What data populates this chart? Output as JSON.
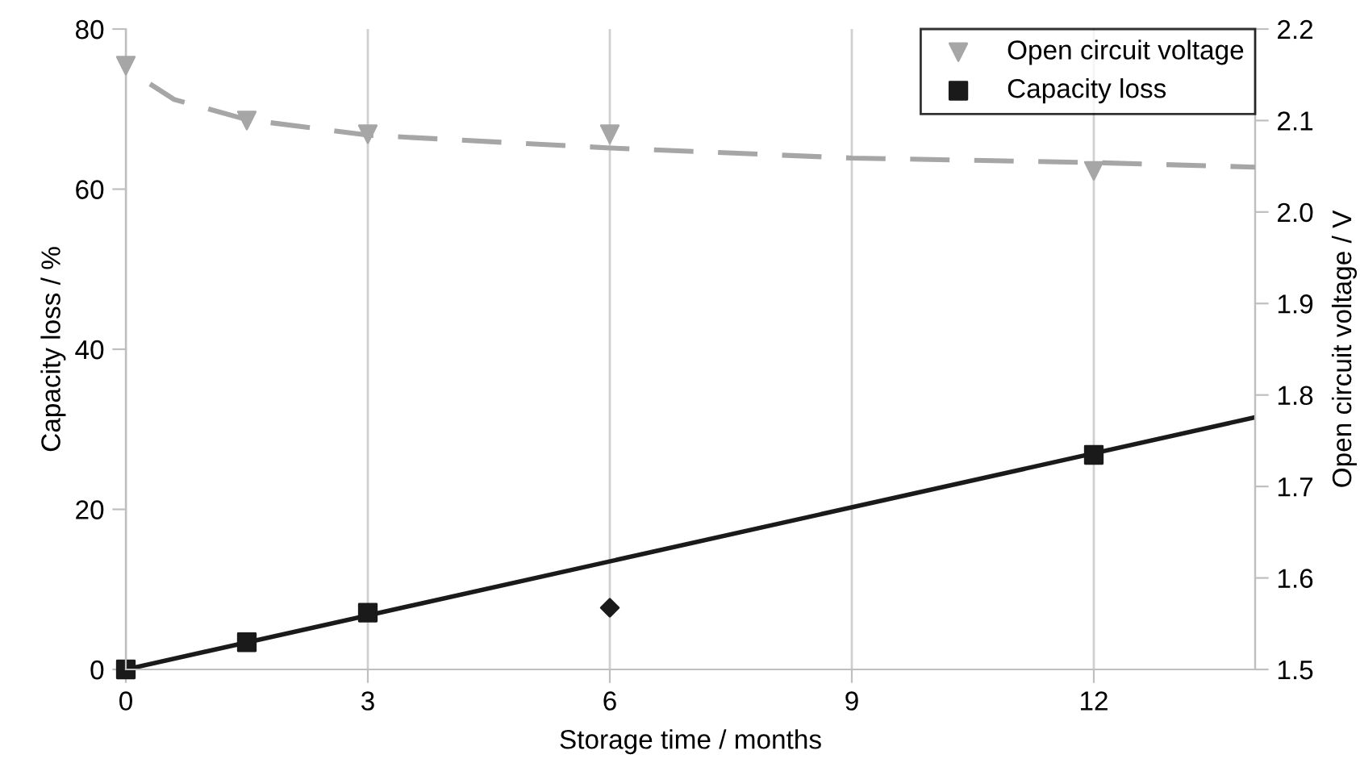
{
  "chart_data": {
    "type": "scatter",
    "xlabel": "Storage time / months",
    "ylabel": "Capacity loss / %",
    "y2label": "Open circuit voltage / V",
    "xlim": [
      0,
      14
    ],
    "xticks": [
      0,
      3,
      6,
      9,
      12
    ],
    "ylim": [
      0,
      80
    ],
    "yticks": [
      0,
      20,
      40,
      60,
      80
    ],
    "y2lim": [
      1.5,
      2.2
    ],
    "y2ticks": [
      1.5,
      1.6,
      1.7,
      1.8,
      1.9,
      {
        "value": 2.0,
        "label": "2.0"
      },
      2.1,
      2.2
    ],
    "grid": "x",
    "legend": "top right",
    "series": [
      {
        "name": "Open circuit voltage",
        "axis": "y2",
        "marker": "triangle",
        "color": "#a6a6a6",
        "x": [
          0,
          1.5,
          3,
          6,
          12
        ],
        "values": [
          2.16,
          2.1,
          2.085,
          2.085,
          2.045
        ]
      },
      {
        "type": "line",
        "axis": "y2",
        "line_style": "dashed",
        "marker": "none",
        "color": "#a6a6a6",
        "x": [
          0.3,
          0.6,
          1.5,
          3,
          6,
          9,
          12,
          14
        ],
        "values": [
          2.14,
          2.123,
          2.101,
          2.084,
          2.07,
          2.059,
          2.054,
          2.049
        ]
      },
      {
        "name": "Capacity loss",
        "marker": "square",
        "color": "#1a1a1a",
        "x": [
          0,
          1.5,
          3,
          12
        ],
        "values": [
          0,
          3.4,
          7.1,
          26.8
        ]
      },
      {
        "type": "line",
        "line_style": "solid",
        "marker": "none",
        "color": "#1a1a1a",
        "x": [
          0,
          14
        ],
        "values": [
          0,
          31.5
        ]
      },
      {
        "marker": "diamond",
        "color": "#1a1a1a",
        "x": [
          6
        ],
        "values": [
          7.7
        ]
      }
    ]
  }
}
